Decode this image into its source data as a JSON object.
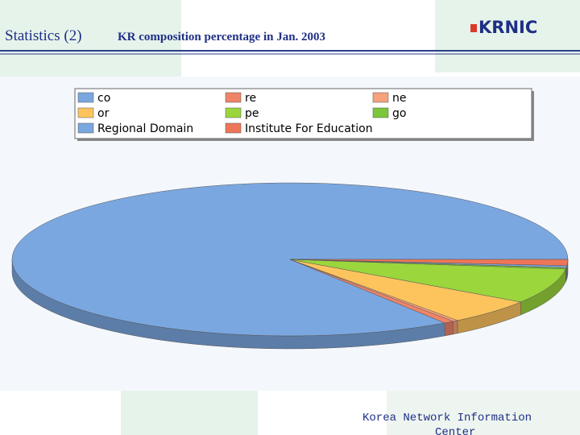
{
  "header": {
    "title": "Statistics (2)",
    "logo": "KRNIC"
  },
  "chart_data": {
    "type": "pie3d",
    "title": "KR composition percentage in Jan. 2003",
    "series": [
      {
        "name": "co",
        "color": "#7ba7e0",
        "values": [
          84.4
        ]
      },
      {
        "name": "re",
        "color": "#ef8466",
        "values": [
          0.6
        ]
      },
      {
        "name": "ne",
        "color": "#f6a27c",
        "values": [
          0.3
        ]
      },
      {
        "name": "or",
        "color": "#fdc45e",
        "values": [
          5.3
        ]
      },
      {
        "name": "pe",
        "color": "#9ad63c",
        "values": [
          7.4
        ]
      },
      {
        "name": "go",
        "color": "#7cc63a",
        "values": [
          0.3
        ]
      },
      {
        "name": "Regional Domain",
        "color": "#7ba7e0",
        "values": [
          0.4
        ]
      },
      {
        "name": "Institute For Education",
        "color": "#ee7658",
        "values": [
          1.3
        ]
      }
    ]
  },
  "footer": {
    "text": "Korea Network Information Center"
  }
}
